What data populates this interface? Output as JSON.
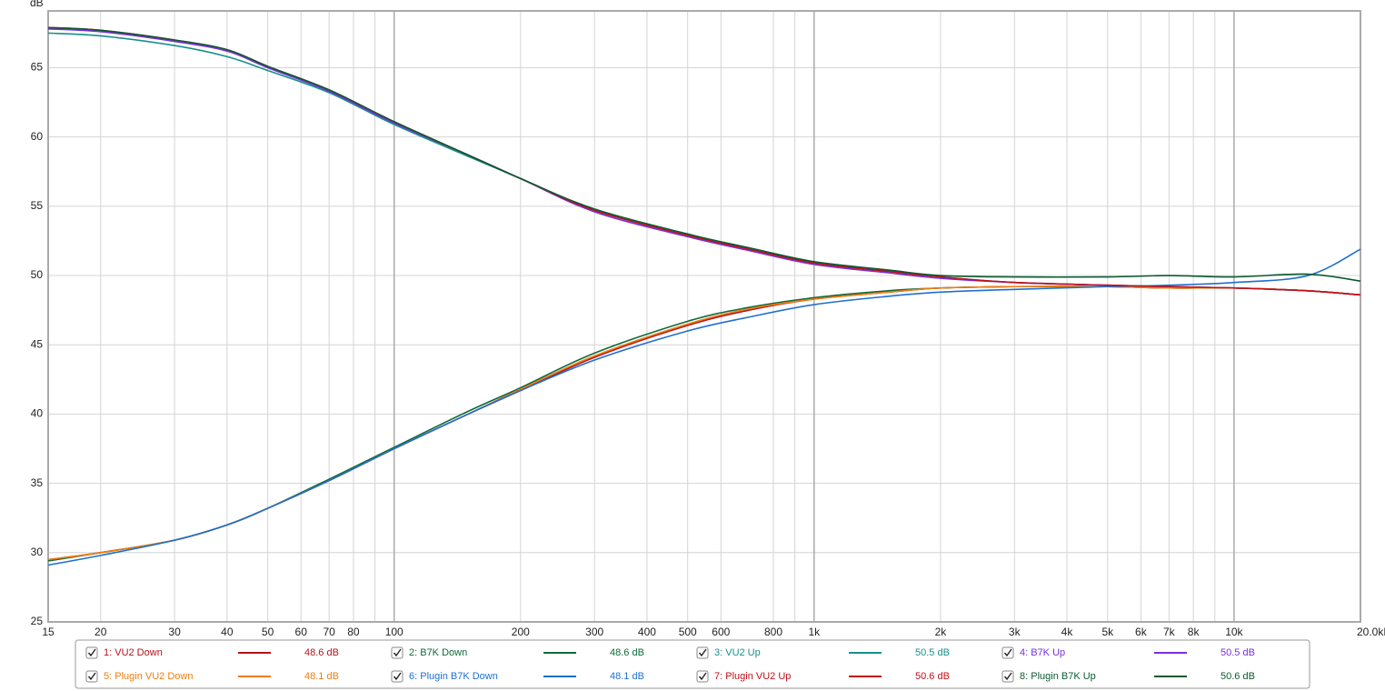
{
  "chart_data": {
    "type": "line",
    "y_unit": "dB",
    "xscale": "log",
    "grid": true,
    "xlim": [
      15,
      20000
    ],
    "ylim": [
      25,
      69.1
    ],
    "yticks": [
      25,
      30,
      35,
      40,
      45,
      50,
      55,
      60,
      65
    ],
    "xticks": [
      15,
      20,
      30,
      40,
      50,
      60,
      70,
      80,
      100,
      200,
      300,
      400,
      500,
      600,
      800,
      {
        "value": 1000,
        "label": "1k"
      },
      {
        "value": 2000,
        "label": "2k"
      },
      {
        "value": 3000,
        "label": "3k"
      },
      {
        "value": 4000,
        "label": "4k"
      },
      {
        "value": 5000,
        "label": "5k"
      },
      {
        "value": 6000,
        "label": "6k"
      },
      {
        "value": 7000,
        "label": "7k"
      },
      {
        "value": 8000,
        "label": "8k"
      },
      {
        "value": 10000,
        "label": "10k"
      },
      {
        "value": 20000,
        "label": "20.0kHz"
      }
    ],
    "minor_xticks": [
      90,
      900,
      9000
    ],
    "x": [
      15,
      20,
      30,
      40,
      50,
      70,
      100,
      150,
      200,
      300,
      500,
      700,
      1000,
      1500,
      2000,
      3000,
      5000,
      7000,
      10000,
      15000,
      20000
    ],
    "series": [
      {
        "name": "1: VU2 Down",
        "color": "#b3141c",
        "readout": "48.6 dB",
        "values": [
          29.5,
          30.0,
          30.9,
          32.0,
          33.2,
          35.2,
          37.5,
          40.0,
          41.7,
          44.1,
          46.4,
          47.5,
          48.3,
          48.8,
          49.1,
          49.2,
          49.2,
          49.1,
          49.1,
          48.9,
          48.6
        ]
      },
      {
        "name": "2: B7K Down",
        "color": "#0d6b3a",
        "readout": "48.6 dB",
        "values": [
          29.4,
          30.0,
          30.9,
          32.0,
          33.2,
          35.3,
          37.6,
          40.2,
          41.9,
          44.4,
          46.7,
          47.7,
          48.4,
          48.9,
          49.1,
          49.2,
          49.2,
          49.1,
          49.1,
          48.9,
          48.6
        ]
      },
      {
        "name": "3: VU2 Up",
        "color": "#17908c",
        "readout": "50.5 dB",
        "values": [
          67.5,
          67.3,
          66.6,
          65.8,
          64.8,
          63.2,
          60.9,
          58.6,
          57.0,
          54.7,
          52.9,
          51.9,
          50.9,
          50.3,
          49.9,
          49.5,
          49.3,
          49.2,
          49.1,
          48.9,
          48.6
        ]
      },
      {
        "name": "4: B7K Up",
        "color": "#7b2fe0",
        "readout": "50.5 dB",
        "values": [
          67.8,
          67.6,
          66.9,
          66.2,
          65.0,
          63.3,
          61.0,
          58.7,
          57.0,
          54.6,
          52.8,
          51.8,
          50.8,
          50.2,
          49.8,
          49.5,
          49.3,
          49.2,
          49.1,
          48.9,
          48.6
        ]
      },
      {
        "name": "5: Plugin VU2 Down",
        "color": "#f07d10",
        "readout": "48.1 dB",
        "values": [
          29.5,
          30.0,
          30.9,
          32.0,
          33.2,
          35.2,
          37.5,
          40.0,
          41.8,
          44.2,
          46.5,
          47.6,
          48.3,
          48.8,
          49.1,
          49.2,
          49.2,
          49.1,
          49.1,
          48.9,
          48.6
        ]
      },
      {
        "name": "6: Plugin B7K Down",
        "color": "#1f6fd0",
        "readout": "48.1 dB",
        "values": [
          29.1,
          29.8,
          30.9,
          32.0,
          33.2,
          35.2,
          37.5,
          40.0,
          41.7,
          43.9,
          46.0,
          47.0,
          47.9,
          48.5,
          48.8,
          49.0,
          49.2,
          49.3,
          49.5,
          50.0,
          51.9
        ]
      },
      {
        "name": "7: Plugin VU2 Up",
        "color": "#c0101a",
        "readout": "50.6 dB",
        "values": [
          67.9,
          67.7,
          67.0,
          66.3,
          65.1,
          63.4,
          61.1,
          58.7,
          57.0,
          54.7,
          52.9,
          51.9,
          50.9,
          50.3,
          49.9,
          49.5,
          49.3,
          49.2,
          49.1,
          48.9,
          48.6
        ]
      },
      {
        "name": "8: Plugin B7K Up",
        "color": "#0b5a30",
        "readout": "50.6 dB",
        "values": [
          67.9,
          67.7,
          67.0,
          66.3,
          65.1,
          63.4,
          61.1,
          58.7,
          57.0,
          54.8,
          53.0,
          52.0,
          51.0,
          50.4,
          50.0,
          49.9,
          49.9,
          50.0,
          49.9,
          50.1,
          49.6
        ]
      }
    ]
  }
}
